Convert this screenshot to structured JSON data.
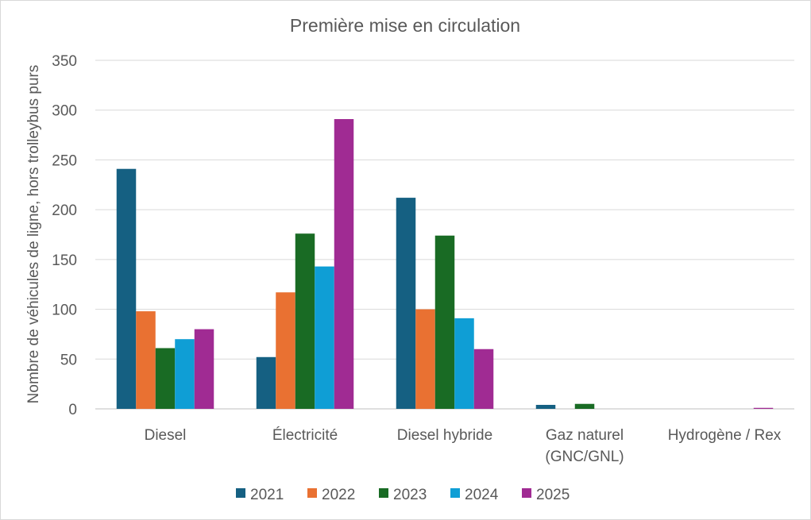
{
  "chart_data": {
    "type": "bar",
    "title": "Première mise en circulation",
    "ylabel": "Nombre de véhicules de ligne, hors trolleybus purs",
    "xlabel": "",
    "ylim": [
      0,
      350
    ],
    "yticks": [
      0,
      50,
      100,
      150,
      200,
      250,
      300,
      350
    ],
    "grid": true,
    "legend_position": "bottom",
    "categories": [
      [
        "Diesel"
      ],
      [
        "Électricité"
      ],
      [
        "Diesel hybride"
      ],
      [
        "Gaz naturel",
        "(GNC/GNL)"
      ],
      [
        "Hydrogène / Rex"
      ]
    ],
    "series": [
      {
        "name": "2021",
        "color": "#156082",
        "values": [
          241,
          52,
          212,
          4,
          0
        ]
      },
      {
        "name": "2022",
        "color": "#E97132",
        "values": [
          98,
          117,
          100,
          0,
          0
        ]
      },
      {
        "name": "2023",
        "color": "#196B24",
        "values": [
          61,
          176,
          174,
          5,
          0
        ]
      },
      {
        "name": "2024",
        "color": "#0F9ED5",
        "values": [
          70,
          143,
          91,
          0,
          0
        ]
      },
      {
        "name": "2025",
        "color": "#A02B93",
        "values": [
          80,
          291,
          60,
          0,
          1
        ]
      }
    ]
  }
}
